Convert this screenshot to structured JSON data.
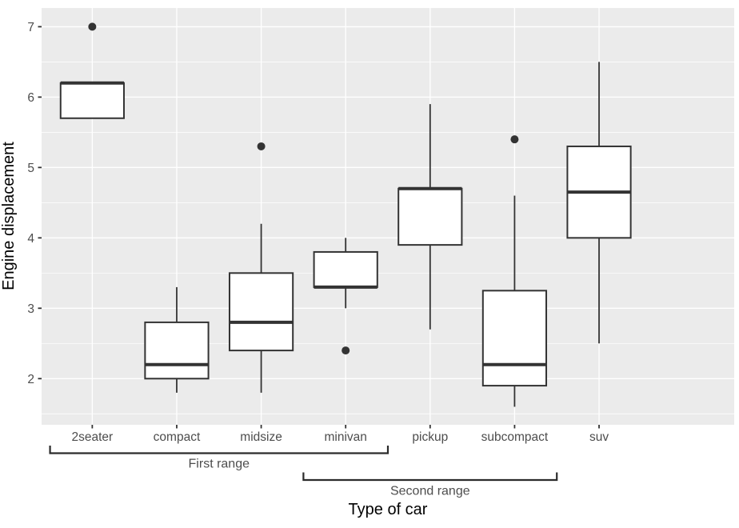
{
  "chart_data": {
    "type": "boxplot",
    "title": "",
    "xlabel": "Type of car",
    "ylabel": "Engine displacement",
    "legend": "none",
    "grid": "on",
    "panel_style": "ggplot2-grey",
    "categories": [
      "2seater",
      "compact",
      "midsize",
      "minivan",
      "pickup",
      "subcompact",
      "suv"
    ],
    "y_ticks": [
      2,
      3,
      4,
      5,
      6,
      7
    ],
    "y_tick_labels": [
      "2",
      "3",
      "4",
      "5",
      "6",
      "7"
    ],
    "y_minor_ticks": [
      1.5,
      2.5,
      3.5,
      4.5,
      5.5,
      6.5
    ],
    "ylim": [
      1.344,
      7.266
    ],
    "series": [
      {
        "category": "2seater",
        "whisker_low": 5.7,
        "q1": 5.7,
        "median": 6.2,
        "q3": 6.2,
        "whisker_high": 6.2,
        "outliers": [
          7.0
        ]
      },
      {
        "category": "compact",
        "whisker_low": 1.8,
        "q1": 2.0,
        "median": 2.2,
        "q3": 2.8,
        "whisker_high": 3.3,
        "outliers": []
      },
      {
        "category": "midsize",
        "whisker_low": 1.8,
        "q1": 2.4,
        "median": 2.8,
        "q3": 3.5,
        "whisker_high": 4.2,
        "outliers": [
          5.3
        ]
      },
      {
        "category": "minivan",
        "whisker_low": 3.0,
        "q1": 3.3,
        "median": 3.3,
        "q3": 3.8,
        "whisker_high": 4.0,
        "outliers": [
          2.4
        ]
      },
      {
        "category": "pickup",
        "whisker_low": 2.7,
        "q1": 3.9,
        "median": 4.7,
        "q3": 4.7,
        "whisker_high": 5.9,
        "outliers": []
      },
      {
        "category": "subcompact",
        "whisker_low": 1.6,
        "q1": 1.9,
        "median": 2.2,
        "q3": 3.25,
        "whisker_high": 4.6,
        "outliers": [
          5.4
        ]
      },
      {
        "category": "suv",
        "whisker_low": 2.5,
        "q1": 4.0,
        "median": 4.65,
        "q3": 5.3,
        "whisker_high": 6.5,
        "outliers": []
      }
    ],
    "annotations": [
      {
        "label": "First range",
        "from_category": "2seater",
        "to_category": "minivan",
        "row": 1
      },
      {
        "label": "Second range",
        "from_category": "minivan",
        "to_category": "subcompact",
        "row": 2
      }
    ],
    "colors": {
      "panel_bg": "#EBEBEB",
      "grid_line": "#FFFFFF",
      "box_stroke": "#333333",
      "box_fill": "#FFFFFF",
      "median_stroke": "#333333",
      "outlier_fill": "#333333",
      "axis_text": "#4D4D4D",
      "axis_title": "#000000",
      "tick_mark": "#333333",
      "bracket_line": "#2B2B2B",
      "bracket_text": "#4D4D4D"
    }
  }
}
